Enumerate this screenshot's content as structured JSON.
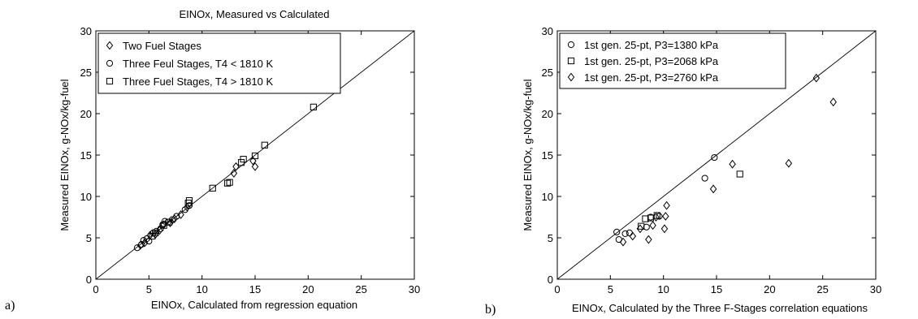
{
  "chart_data": [
    {
      "type": "scatter",
      "panel_label": "a)",
      "title": "EINOx, Measured vs Calculated",
      "xlabel": "EINOx, Calculated from regression equation",
      "ylabel": "Measured EINOx, g-NOx/kg-fuel",
      "xlim": [
        0,
        30
      ],
      "ylim": [
        0,
        30
      ],
      "xticks": [
        "0",
        "5",
        "10",
        "15",
        "20",
        "25",
        "30"
      ],
      "yticks": [
        "0",
        "5",
        "10",
        "15",
        "20",
        "25",
        "30"
      ],
      "grid": false,
      "legend_position": "top-left",
      "reference_line": "y = x",
      "series": [
        {
          "name": "Two Fuel Stages",
          "marker": "diamond",
          "points": [
            [
              4.2,
              4.1
            ],
            [
              4.6,
              4.4
            ],
            [
              5.1,
              5.3
            ],
            [
              5.6,
              5.4
            ],
            [
              6.0,
              5.9
            ],
            [
              6.4,
              6.6
            ],
            [
              7.0,
              6.8
            ],
            [
              7.4,
              7.3
            ],
            [
              8.0,
              7.8
            ],
            [
              8.6,
              8.7
            ],
            [
              13.0,
              12.8
            ],
            [
              13.2,
              13.6
            ],
            [
              15.0,
              13.6
            ],
            [
              14.8,
              14.3
            ]
          ]
        },
        {
          "name": "Three Feul Stages, T4 < 1810 K",
          "marker": "circle",
          "points": [
            [
              3.9,
              3.8
            ],
            [
              4.3,
              4.2
            ],
            [
              4.5,
              4.7
            ],
            [
              4.8,
              4.9
            ],
            [
              5.0,
              4.6
            ],
            [
              5.4,
              5.6
            ],
            [
              5.7,
              5.8
            ],
            [
              6.1,
              6.1
            ],
            [
              6.3,
              6.6
            ],
            [
              6.5,
              7.0
            ],
            [
              6.8,
              6.9
            ],
            [
              7.2,
              7.2
            ],
            [
              7.6,
              7.6
            ],
            [
              8.4,
              8.4
            ],
            [
              8.8,
              8.9
            ]
          ]
        },
        {
          "name": "Three Fuel Stages, T4 > 1810 K",
          "marker": "square",
          "points": [
            [
              5.3,
              5.2
            ],
            [
              5.6,
              5.6
            ],
            [
              6.4,
              6.5
            ],
            [
              6.9,
              6.9
            ],
            [
              8.7,
              9.2
            ],
            [
              8.8,
              9.5
            ],
            [
              11.0,
              11.0
            ],
            [
              12.4,
              11.6
            ],
            [
              12.6,
              11.7
            ],
            [
              13.7,
              14.1
            ],
            [
              13.9,
              14.5
            ],
            [
              15.0,
              14.9
            ],
            [
              15.9,
              16.2
            ],
            [
              20.5,
              20.8
            ]
          ]
        }
      ]
    },
    {
      "type": "scatter",
      "panel_label": "b)",
      "title": "",
      "xlabel": "EINOx, Calculated by the Three F-Stages correlation equations",
      "ylabel": "Measured EINOx, g-NOx/kg-fuel",
      "xlim": [
        0,
        30
      ],
      "ylim": [
        0,
        30
      ],
      "xticks": [
        "0",
        "5",
        "10",
        "15",
        "20",
        "25",
        "30"
      ],
      "yticks": [
        "0",
        "5",
        "10",
        "15",
        "20",
        "25",
        "30"
      ],
      "grid": false,
      "legend_position": "top-left",
      "reference_line": "y = x",
      "series": [
        {
          "name": "1st gen. 25-pt, P3=1380 kPa",
          "marker": "circle",
          "points": [
            [
              5.6,
              5.7
            ],
            [
              5.8,
              4.8
            ],
            [
              6.4,
              5.5
            ],
            [
              6.8,
              5.6
            ],
            [
              8.4,
              6.3
            ],
            [
              8.8,
              7.5
            ],
            [
              9.6,
              7.6
            ],
            [
              13.9,
              12.2
            ],
            [
              14.8,
              14.7
            ]
          ]
        },
        {
          "name": "1st gen. 25-pt, P3=2068 kPa",
          "marker": "square",
          "points": [
            [
              7.9,
              6.4
            ],
            [
              8.3,
              7.3
            ],
            [
              8.8,
              7.4
            ],
            [
              9.4,
              7.7
            ],
            [
              17.2,
              12.7
            ]
          ]
        },
        {
          "name": "1st gen. 25-pt, P3=2760 kPa",
          "marker": "diamond",
          "points": [
            [
              6.2,
              4.5
            ],
            [
              7.1,
              5.2
            ],
            [
              7.8,
              6.1
            ],
            [
              8.6,
              4.8
            ],
            [
              9.0,
              6.5
            ],
            [
              9.3,
              7.5
            ],
            [
              10.1,
              6.1
            ],
            [
              10.2,
              7.6
            ],
            [
              10.3,
              8.9
            ],
            [
              14.7,
              10.9
            ],
            [
              16.5,
              13.9
            ],
            [
              21.8,
              14.0
            ],
            [
              24.4,
              24.3
            ],
            [
              26.0,
              21.4
            ]
          ]
        }
      ]
    }
  ]
}
